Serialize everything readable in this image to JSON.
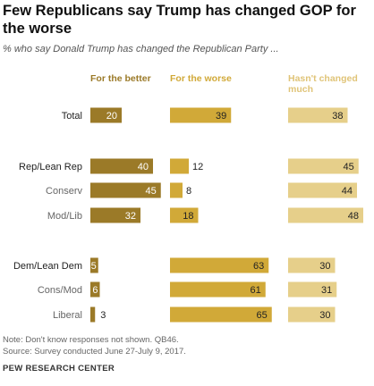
{
  "title": "Few Republicans say Trump has changed GOP for the worse",
  "subtitle": "% who say Donald Trump has changed the Republican Party ...",
  "note": "Note: Don't know responses not shown. QB46.",
  "source": "Source: Survey conducted June 27-July 9, 2017.",
  "organization": "PEW RESEARCH CENTER",
  "colors": {
    "better": "#9b7a28",
    "worse": "#d1a938",
    "unchanged": "#e6cf8a"
  },
  "chart_data": {
    "type": "bar",
    "orientation": "horizontal",
    "stacked": false,
    "series": [
      {
        "name": "For the better",
        "values": [
          20,
          40,
          45,
          32,
          5,
          6,
          3
        ]
      },
      {
        "name": "For the worse",
        "values": [
          39,
          12,
          8,
          18,
          63,
          61,
          65
        ]
      },
      {
        "name": "Hasn't changed much",
        "values": [
          38,
          45,
          44,
          48,
          30,
          31,
          30
        ]
      }
    ],
    "categories": [
      "Total",
      "Rep/Lean Rep",
      "Conserv",
      "Mod/Lib",
      "Dem/Lean Dem",
      "Cons/Mod",
      "Liberal"
    ],
    "category_emphasis": [
      true,
      true,
      false,
      false,
      true,
      false,
      false
    ],
    "xlim": [
      0,
      100
    ]
  }
}
